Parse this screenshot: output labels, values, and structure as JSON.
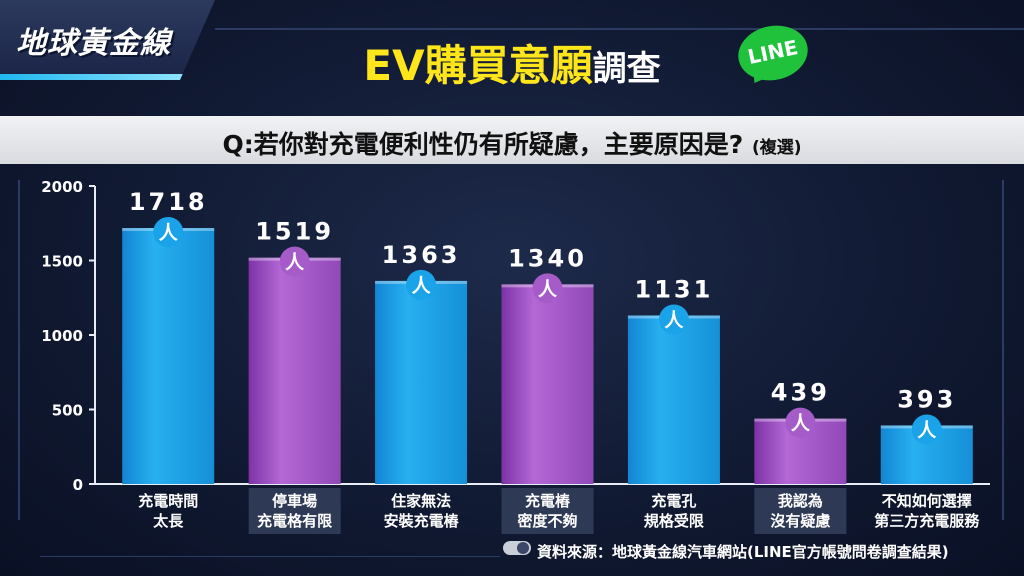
{
  "header": {
    "logo_text": "地球黃金線",
    "title_highlight": "EV購買意願",
    "title_rest": "調查",
    "line_badge": "LINE"
  },
  "question": {
    "text": "Q:若你對充電便利性仍有所疑慮，主要原因是?",
    "note": "(複選)"
  },
  "source": {
    "text": "資料來源：地球黃金線汽車網站(LINE官方帳號問卷調查結果)"
  },
  "colors": {
    "blue": "#1aa3e8",
    "purple": "#a55cc9",
    "title_yellow": "#ffe61a"
  },
  "chart_data": {
    "type": "bar",
    "categories": [
      "充電時間\n太長",
      "停車場\n充電格有限",
      "住家無法\n安裝充電樁",
      "充電樁\n密度不夠",
      "充電孔\n規格受限",
      "我認為\n沒有疑慮",
      "不知如何選擇\n第三方充電服務"
    ],
    "values": [
      1718,
      1519,
      1363,
      1340,
      1131,
      439,
      393
    ],
    "value_unit": "人",
    "bar_colors": [
      "blue",
      "purple",
      "blue",
      "purple",
      "blue",
      "purple",
      "blue"
    ],
    "y_ticks": [
      0,
      500,
      1000,
      1500,
      2000
    ],
    "ylim": [
      0,
      2000
    ],
    "grid": false
  }
}
